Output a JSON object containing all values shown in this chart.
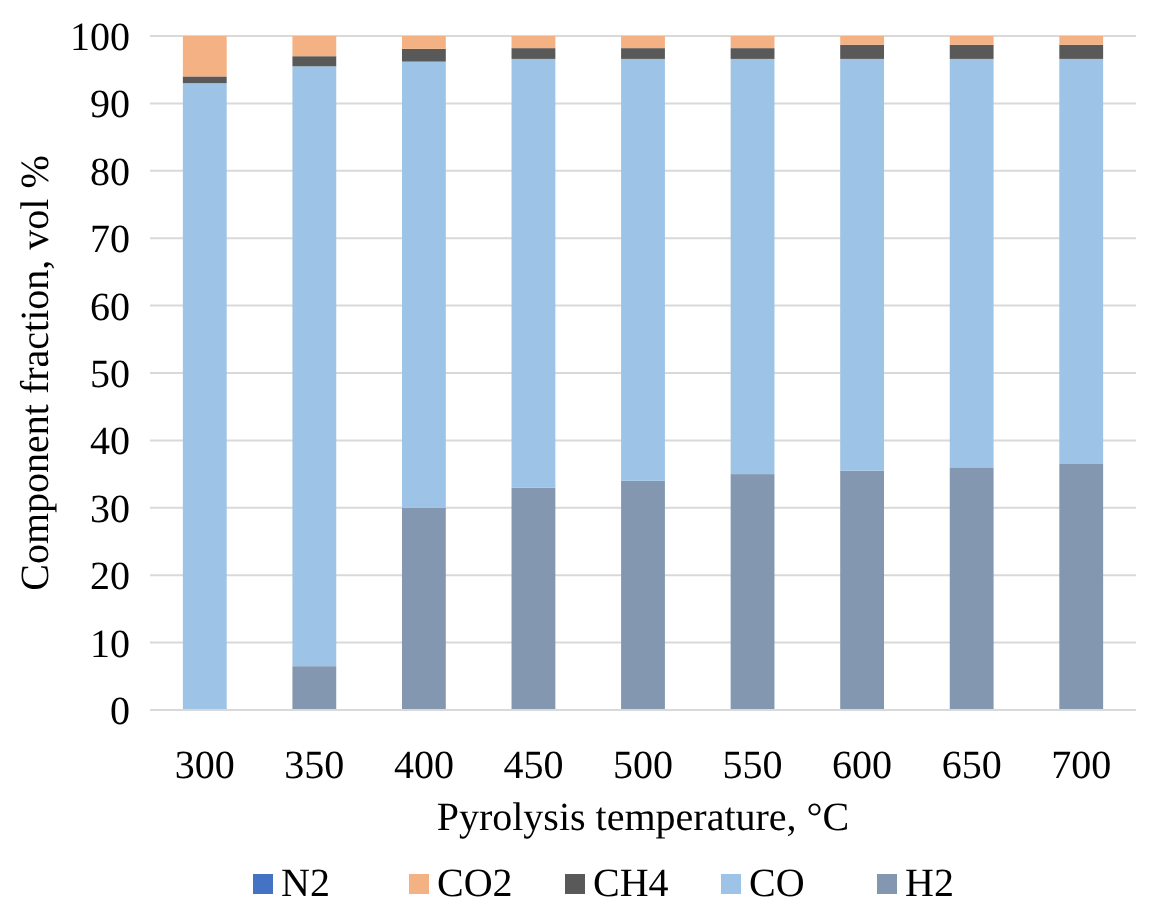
{
  "chart_data": {
    "type": "bar",
    "stacked": true,
    "xlabel": "Pyrolysis temperature, °C",
    "ylabel": "Component fraction, vol %",
    "categories": [
      "300",
      "350",
      "400",
      "450",
      "500",
      "550",
      "600",
      "650",
      "700"
    ],
    "series": [
      {
        "name": "H2",
        "color": "#8497b0",
        "values": [
          0,
          6.5,
          30,
          33,
          34,
          35,
          35.5,
          36,
          36.5
        ]
      },
      {
        "name": "CO",
        "color": "#9dc3e6",
        "values": [
          93,
          89,
          66.2,
          63.6,
          62.6,
          61.6,
          61.1,
          60.6,
          60.1
        ]
      },
      {
        "name": "CH4",
        "color": "#595959",
        "values": [
          1,
          1.5,
          1.9,
          1.6,
          1.6,
          1.6,
          2.1,
          2.1,
          2.1
        ]
      },
      {
        "name": "CO2",
        "color": "#f4b183",
        "values": [
          6,
          3,
          1.9,
          1.8,
          1.8,
          1.8,
          1.3,
          1.3,
          1.3
        ]
      },
      {
        "name": "N2",
        "color": "#4472c4",
        "values": [
          0,
          0,
          0,
          0,
          0,
          0,
          0,
          0,
          0
        ]
      }
    ],
    "ylim": [
      0,
      100
    ],
    "yticks": [
      0,
      10,
      20,
      30,
      40,
      50,
      60,
      70,
      80,
      90,
      100
    ],
    "grid": "y",
    "legend": "bottom"
  }
}
